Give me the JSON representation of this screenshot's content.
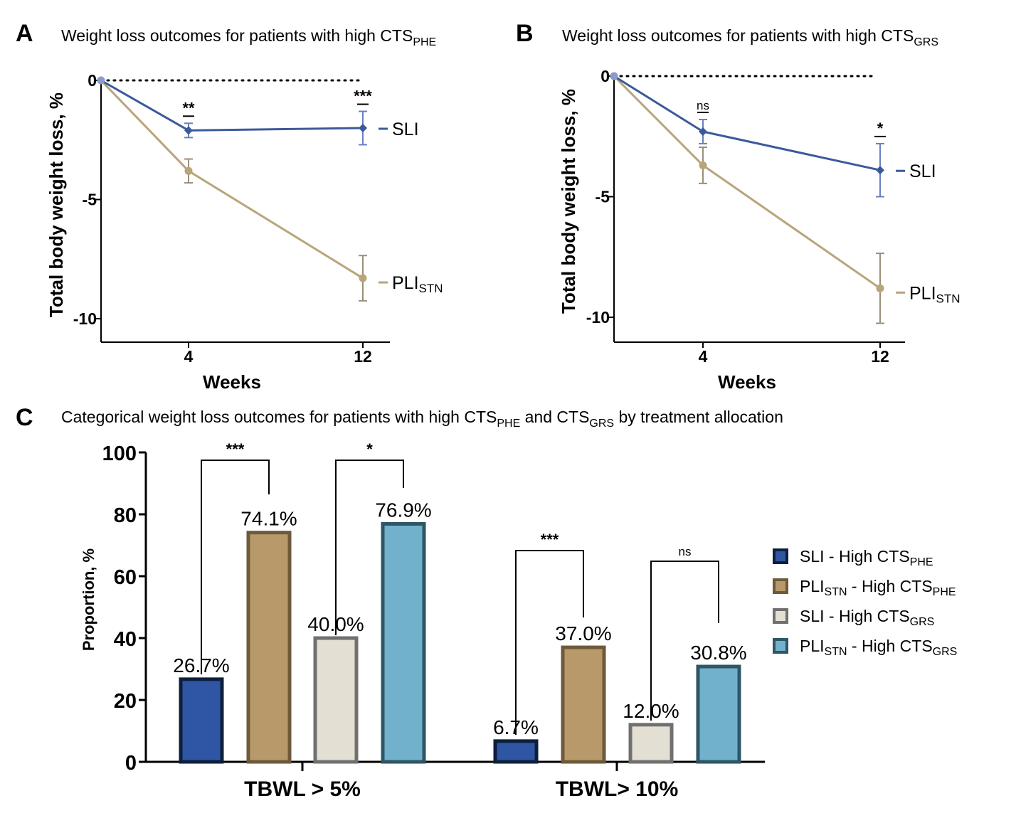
{
  "panels": {
    "a": {
      "letter": "A",
      "title_main": "Weight loss outcomes for patients with high CTS",
      "title_sub": "PHE"
    },
    "b": {
      "letter": "B",
      "title_main": "Weight loss outcomes for patients with high CTS",
      "title_sub": "GRS"
    },
    "c": {
      "letter": "C",
      "title_part1": "Categorical weight loss outcomes for patients with high CTS",
      "title_sub1": "PHE",
      "title_part2": " and CTS",
      "title_sub2": "GRS",
      "title_part3": " by treatment allocation"
    }
  },
  "colors": {
    "sli_line": "#3b5a9a",
    "pli_line": "#b9a57a",
    "bar_sli_phe": "#2f56a4",
    "bar_pli_phe": "#b89a6a",
    "bar_sli_grs": "#e3dfd2",
    "bar_pli_grs": "#72b1cb"
  },
  "chart_data": [
    {
      "type": "line",
      "panel": "A",
      "xlabel": "Weeks",
      "ylabel": "Total body weight loss, %",
      "x_ticks": [
        "4",
        "12"
      ],
      "y_ticks": [
        "0",
        "-5",
        "-10"
      ],
      "ylim": [
        -11,
        0
      ],
      "series": [
        {
          "name": "SLI",
          "sub": "",
          "x": [
            0,
            4,
            12
          ],
          "values": [
            0,
            -2.1,
            -2.0
          ],
          "err": [
            0,
            0.3,
            0.7
          ]
        },
        {
          "name": "PLI",
          "sub": "STN",
          "x": [
            0,
            4,
            12
          ],
          "values": [
            0,
            -3.8,
            -8.3
          ],
          "err": [
            0,
            0.5,
            0.95
          ]
        }
      ],
      "significance": [
        "**",
        "***"
      ]
    },
    {
      "type": "line",
      "panel": "B",
      "xlabel": "Weeks",
      "ylabel": "Total body weight loss, %",
      "x_ticks": [
        "4",
        "12"
      ],
      "y_ticks": [
        "0",
        "-5",
        "-10"
      ],
      "ylim": [
        -11,
        0
      ],
      "series": [
        {
          "name": "SLI",
          "sub": "",
          "x": [
            0,
            4,
            12
          ],
          "values": [
            0,
            -2.3,
            -3.9
          ],
          "err": [
            0,
            0.5,
            1.1
          ]
        },
        {
          "name": "PLI",
          "sub": "STN",
          "x": [
            0,
            4,
            12
          ],
          "values": [
            0,
            -3.7,
            -8.8
          ],
          "err": [
            0,
            0.75,
            1.45
          ]
        }
      ],
      "significance": [
        "ns",
        "*"
      ]
    },
    {
      "type": "bar",
      "panel": "C",
      "ylabel": "Proportion, %",
      "ylim": [
        0,
        100
      ],
      "y_ticks": [
        "0",
        "20",
        "40",
        "60",
        "80",
        "100"
      ],
      "categories": [
        "TBWL > 5%",
        "TBWL> 10%"
      ],
      "series": [
        {
          "name": "SLI - High CTS",
          "sub1": "",
          "sub2": "PHE",
          "values": [
            26.7,
            6.7
          ],
          "labels": [
            "26.7%",
            "6.7%"
          ]
        },
        {
          "name": "PLI",
          "sub1": "STN",
          "mid": " - High CTS",
          "sub2": "PHE",
          "values": [
            74.1,
            37.0
          ],
          "labels": [
            "74.1%",
            "37.0%"
          ]
        },
        {
          "name": "SLI - High CTS",
          "sub1": "",
          "sub2": "GRS",
          "values": [
            40.0,
            12.0
          ],
          "labels": [
            "40.0%",
            "12.0%"
          ]
        },
        {
          "name": "PLI",
          "sub1": "STN",
          "mid": " - High CTS",
          "sub2": "GRS",
          "values": [
            76.9,
            30.8
          ],
          "labels": [
            "76.9%",
            "30.8%"
          ]
        }
      ],
      "legend": [
        {
          "a": "SLI - High CTS",
          "sub_a": "PHE",
          "b": "",
          "sub_b": ""
        },
        {
          "a": "PLI",
          "sub_a": "STN",
          "b": " - High CTS",
          "sub_b": "PHE"
        },
        {
          "a": "SLI - High CTS",
          "sub_a": "GRS",
          "b": "",
          "sub_b": ""
        },
        {
          "a": "PLI",
          "sub_a": "STN",
          "b": " - High CTS",
          "sub_b": "GRS"
        }
      ],
      "significance": [
        "***",
        "*",
        "***",
        "ns"
      ]
    }
  ]
}
